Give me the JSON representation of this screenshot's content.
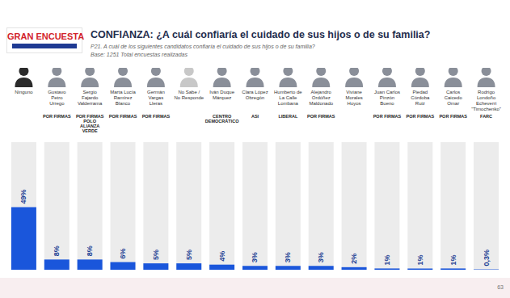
{
  "chart_data": {
    "type": "bar",
    "title": "CONFIANZA: ¿A cuál confiaría el cuidado de sus hijos o de su familia?",
    "subtitle": "P21. A cuál de los siguientes candidatos confiaría el cuidado de sus hijos o de su familia?",
    "annotations": [
      "Base: 1251 Total encuestas realizadas"
    ],
    "logo": "GRAN ENCUESTA",
    "page": "63",
    "categories": [
      "Ninguno",
      "Gustavo Petro Urrego",
      "Sergio Fajardo Valderrama",
      "Marta Lucía Ramírez Blanco",
      "Germán Vargas Lleras",
      "No Sabe / No Responde",
      "Iván Duque Márquez",
      "Clara López Obregón",
      "Humberto de La Calle Lombana",
      "Alejandro Ordóñez Maldonado",
      "Viviane Morales Hoyos",
      "Juan Carlos Pinzón Bueno",
      "Piedad Córdoba Ruiz",
      "Carlos Caicedo Omar",
      "Rodrigo Londoño Echeverri \"Timochenko\""
    ],
    "parties": [
      null,
      "POR FIRMAS",
      "POR FIRMAS POLO ALIANZA VERDE",
      "POR FIRMAS",
      "POR FIRMAS",
      null,
      "CENTRO DEMOCRÁTICO",
      "ASI",
      "LIBERAL",
      "POR FIRMAS",
      null,
      "POR FIRMAS",
      "POR FIRMAS",
      "POR FIRMAS",
      "FARC"
    ],
    "values": [
      49,
      8,
      8,
      6,
      5,
      5,
      4,
      3,
      3,
      3,
      2,
      1,
      1,
      1,
      0.3
    ],
    "value_labels": [
      "49%",
      "8%",
      "8%",
      "6%",
      "5%",
      "5%",
      "4%",
      "3%",
      "3%",
      "3%",
      "2%",
      "1%",
      "1%",
      "1%",
      "0,3%"
    ],
    "color": "#1a56db",
    "ylim": [
      0,
      100
    ],
    "grid": false,
    "data_labels": true,
    "tick_labels": "x"
  }
}
